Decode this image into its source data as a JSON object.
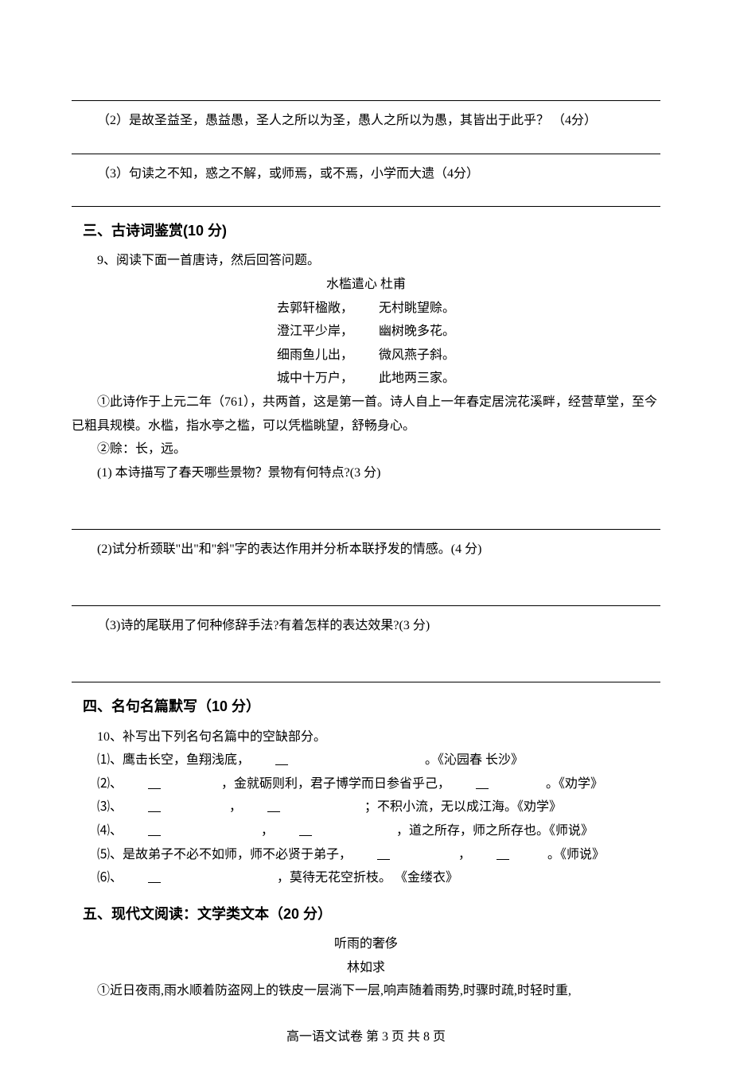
{
  "colors": {
    "text": "#000000",
    "bg": "#ffffff",
    "rule": "#000000"
  },
  "typography": {
    "body_font": "SimSun",
    "heading_font": "SimHei",
    "body_fontsize_pt": 12,
    "heading_fontsize_pt": 14,
    "line_height": 1.85
  },
  "q2": {
    "text": "（2）是故圣益圣，愚益愚，圣人之所以为圣，愚人之所以为愚，其皆出于此乎？ （4分）"
  },
  "q3": {
    "text": "（3）句读之不知，惑之不解，或师焉，或不焉，小学而大遗（4分）"
  },
  "section3": {
    "heading": "三、古诗词鉴赏(10 分)",
    "intro": "9、阅读下面一首唐诗，然后回答问题。",
    "poem_title": "水槛遣心   杜甫",
    "lines": [
      {
        "l": "去郭轩楹敞，",
        "r": "无村眺望赊。"
      },
      {
        "l": "澄江平少岸，",
        "r": "幽树晚多花。"
      },
      {
        "l": "细雨鱼儿出，",
        "r": "微风燕子斜。"
      },
      {
        "l": "城中十万户，",
        "r": "此地两三家。"
      }
    ],
    "note1": "①此诗作于上元二年（761），共两首，这是第一首。诗人自上一年春定居浣花溪畔，经营草堂，至今已粗具规模。水槛，指水亭之槛，可以凭槛眺望，舒畅身心。",
    "note2": "②赊：长，远。",
    "sub1": "(1) 本诗描写了春天哪些景物？景物有何特点?(3 分)",
    "sub2": "(2)试分析颈联\"出\"和\"斜\"字的表达作用并分析本联抒发的情感。(4 分)",
    "sub3": "（3)诗的尾联用了何种修辞手法?有着怎样的表达效果?(3 分)"
  },
  "section4": {
    "heading": "四、名句名篇默写（10 分）",
    "intro": "10、补写出下列名句名篇中的空缺部分。",
    "items": [
      {
        "pre": "⑴、鹰击长空，鱼翔浅底，",
        "post": "。《沁园春 长沙》",
        "blank": "w120"
      },
      {
        "pre": "⑵、",
        "mid": " ，金就砺则利，君子博学而日参省乎己，",
        "post": "。《劝学》",
        "b1": "w100",
        "b2": "w100"
      },
      {
        "pre": "⑶、",
        "mid": " ，",
        "mid2": " ；不积小流，无以成江海。《劝学》",
        "b1": "w130",
        "b2": "w140"
      },
      {
        "pre": "⑷、",
        "mid": " ，",
        "mid2": " ，道之所存，师之所存也。《师说》",
        "b1": "w160",
        "b2": "w140"
      },
      {
        "pre": "⑸、是故弟子不必不如师，师不必贤于弟子，",
        "mid": " ，",
        "post": "。《师说》",
        "b1": "w130",
        "b2": "w90"
      },
      {
        "pre": "⑹、",
        "post": " ，莫待无花空折枝。 《金缕衣》",
        "b1": "w190"
      }
    ]
  },
  "section5": {
    "heading": "五、现代文阅读：文学类文本（20 分）",
    "title": "听雨的奢侈",
    "author": "林如求",
    "para1": "①近日夜雨,雨水顺着防盗网上的铁皮一层淌下一层,响声随着雨势,时骤时疏,时轻时重,"
  },
  "footer": {
    "label_prefix": "高一语文试卷   第 ",
    "page_current": "3",
    "label_mid": " 页   共 ",
    "page_total": "8",
    "label_suffix": " 页"
  }
}
